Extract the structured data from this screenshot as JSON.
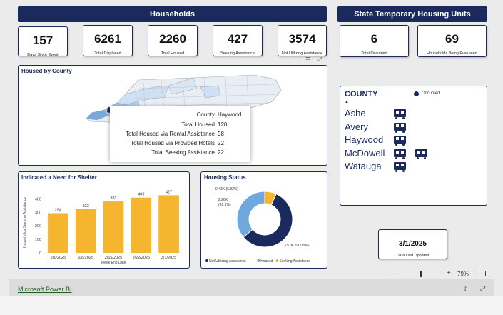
{
  "households_banner": "Households",
  "stu_banner": "State Temporary Housing Units",
  "kpis": [
    {
      "value": "157",
      "label": "Days Since Event"
    },
    {
      "value": "6261",
      "label": "Total Displaced"
    },
    {
      "value": "2260",
      "label": "Total Housed"
    },
    {
      "value": "427",
      "label": "Seeking Assistance"
    },
    {
      "value": "3574",
      "label": "Not Utilizing Assistance"
    }
  ],
  "stu_kpis": [
    {
      "value": "6",
      "label": "Total Occupied"
    },
    {
      "value": "69",
      "label": "Households Being Evaluated"
    }
  ],
  "map": {
    "title": "Housed by County",
    "tooltip": {
      "rows": [
        {
          "k": "County",
          "v": "Haywood"
        },
        {
          "k": "Total Housed",
          "v": "120"
        },
        {
          "k": "Total Housed via Rental Assistance",
          "v": "98"
        },
        {
          "k": "Total Housed via Provided Hotels",
          "v": "22"
        },
        {
          "k": "Total Seeking Assistance",
          "v": "22"
        }
      ]
    }
  },
  "county_list": {
    "header": "COUNTY",
    "sort_indicator": "▲",
    "legend_label": "Occupied",
    "items": [
      {
        "name": "Ashe",
        "units": 1
      },
      {
        "name": "Avery",
        "units": 1
      },
      {
        "name": "Haywood",
        "units": 1
      },
      {
        "name": "McDowell",
        "units": 2
      },
      {
        "name": "Watauga",
        "units": 1
      }
    ]
  },
  "date_card": {
    "value": "3/1/2025",
    "label": "Data Last Updated"
  },
  "zoom": {
    "minus": "-",
    "plus": "+",
    "level": "79%"
  },
  "footer": {
    "link": "Microsoft Power BI"
  },
  "colors": {
    "navy": "#1b2a5c",
    "bar": "#f5b52e",
    "housed": "#6fa8dc"
  },
  "chart_data": [
    {
      "type": "bar",
      "title": "Indicated a Need for Shelter",
      "categories": [
        "2/1/2025",
        "2/8/2025",
        "2/15/2025",
        "2/22/2025",
        "3/1/2025"
      ],
      "values": [
        294,
        323,
        381,
        409,
        427
      ],
      "xlabel": "Week End Date",
      "ylabel": "Households Seeking Assistance",
      "yticks": [
        0,
        100,
        200,
        300,
        400
      ],
      "ylim": [
        0,
        450
      ]
    },
    {
      "type": "pie",
      "title": "Housing Status",
      "slices": [
        {
          "name": "Not Utilizing Assistance",
          "value": 3574,
          "label": "3.57K (57.08%)",
          "color": "#1b2a5c"
        },
        {
          "name": "Housed",
          "value": 2260,
          "label": "2.26K (36.1%)",
          "color": "#6fa8dc"
        },
        {
          "name": "Seeking Assistance",
          "value": 427,
          "label": "0.43K (6.82%)",
          "color": "#f5b52e"
        }
      ]
    }
  ]
}
